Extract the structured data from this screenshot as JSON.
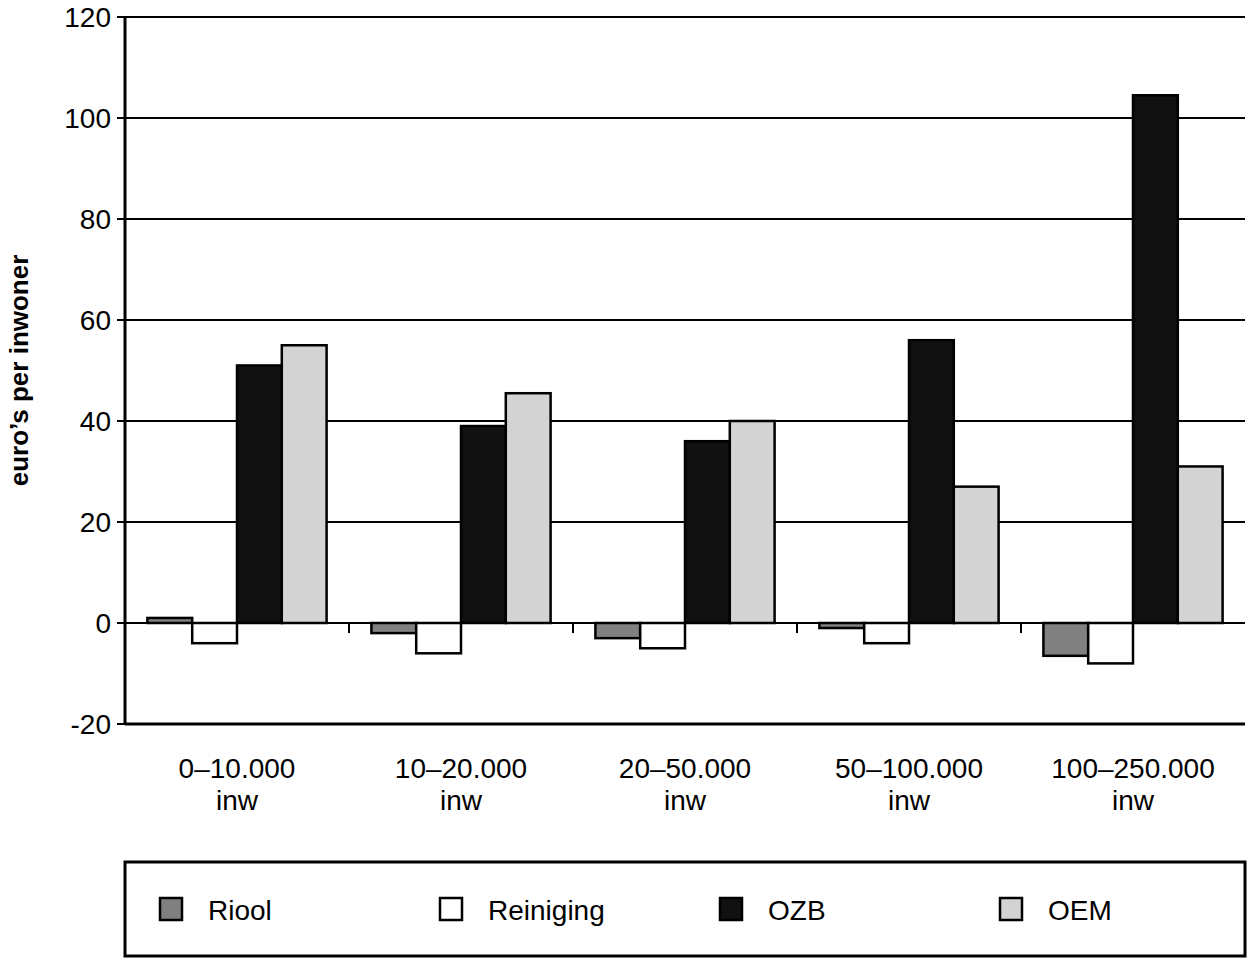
{
  "chart_data": {
    "type": "bar",
    "y_label": "euro’s per inwoner",
    "categories": [
      "0–10.000 inw",
      "10–20.000 inw",
      "20–50.000 inw",
      "50–100.000 inw",
      "100–250.000 inw"
    ],
    "series": [
      {
        "name": "Riool",
        "color": "#808080",
        "values": [
          1,
          -2,
          -3,
          -1,
          -6.5
        ]
      },
      {
        "name": "Reiniging",
        "color": "#ffffff",
        "values": [
          -4,
          -6,
          -5,
          -4,
          -8
        ]
      },
      {
        "name": "OZB",
        "color": "#111111",
        "values": [
          51,
          39,
          36,
          56,
          104.5
        ]
      },
      {
        "name": "OEM",
        "color": "#d3d3d3",
        "values": [
          55,
          45.5,
          40,
          27,
          31
        ]
      }
    ],
    "ylim": [
      -20,
      120
    ],
    "yticks": [
      -20,
      0,
      20,
      40,
      60,
      80,
      100,
      120
    ],
    "grid": true,
    "legend": "bottom"
  }
}
